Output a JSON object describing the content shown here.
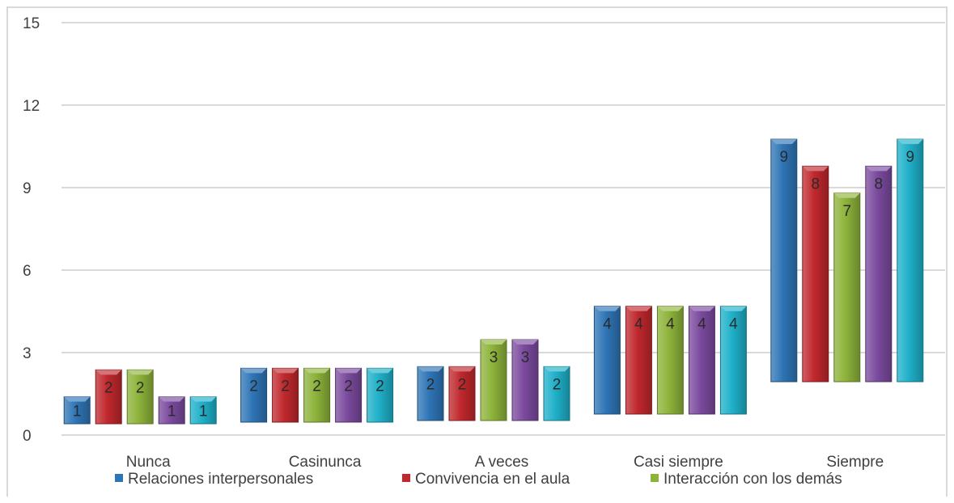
{
  "chart_data": {
    "type": "bar",
    "categories": [
      "Nunca",
      "Casinunca",
      "A veces",
      "Casi siempre",
      "Siempre"
    ],
    "series": [
      {
        "name": "Relaciones interpersonales",
        "color": "#2e75b6",
        "values": [
          1,
          2,
          2,
          4,
          9
        ]
      },
      {
        "name": "Convivencia en el aula",
        "color": "#c0282d",
        "values": [
          2,
          2,
          2,
          4,
          8
        ]
      },
      {
        "name": "Interacción con los demás",
        "color": "#8db33a",
        "values": [
          2,
          2,
          3,
          4,
          7
        ]
      },
      {
        "name": "",
        "color": "#7b4a9e",
        "values": [
          1,
          2,
          3,
          4,
          8
        ]
      },
      {
        "name": "",
        "color": "#1fb0c9",
        "values": [
          1,
          2,
          2,
          4,
          9
        ]
      }
    ],
    "ylim": [
      0,
      15
    ],
    "yticks": [
      "0",
      "3",
      "6",
      "9",
      "12",
      "15"
    ],
    "grid": true,
    "legend_position": "bottom"
  },
  "legend": {
    "items": [
      {
        "label": "Relaciones interpersonales",
        "color": "#2e75b6"
      },
      {
        "label": "Convivencia en el aula",
        "color": "#c0282d"
      },
      {
        "label": "Interacción con los demás",
        "color": "#8db33a"
      }
    ]
  }
}
